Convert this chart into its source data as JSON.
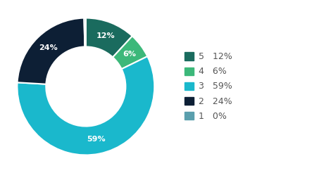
{
  "labels": [
    "5",
    "4",
    "3",
    "2",
    "1"
  ],
  "values": [
    12,
    6,
    59,
    24,
    0
  ],
  "display_values": [
    "12%",
    "6%",
    "59%",
    "24%",
    "0%"
  ],
  "colors": [
    "#1a6b5e",
    "#3cb87a",
    "#1ab8cc",
    "#0d1f35",
    "#5a9fad"
  ],
  "legend_labels": [
    "5   12%",
    "4   6%",
    "3   59%",
    "2   24%",
    "1   0%"
  ],
  "background_color": "#ffffff",
  "wedge_edge_color": "#ffffff",
  "label_color": "#ffffff",
  "label_fontsize": 8,
  "legend_fontsize": 9,
  "donut_width": 0.42
}
